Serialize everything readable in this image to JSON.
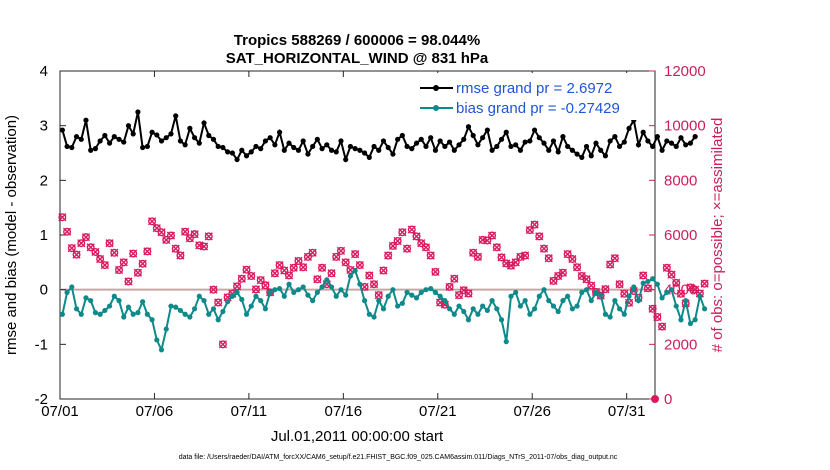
{
  "chart_data": {
    "type": "line",
    "title": "Tropics 588269 / 600006 = 98.044%",
    "subtitle": "SAT_HORIZONTAL_WIND @ 831 hPa",
    "xlabel": "Jul.01,2011 00:00:00 start",
    "ylabel": "rmse and bias (model - observation)",
    "y2label": "# of obs: o=possible; ×=assimilated",
    "footnote": "data file: /Users/raeder/DAI/ATM_forcXX/CAM6_setup/f.e21.FHIST_BGC.f09_025.CAM6assim.011/Diags_NTrS_2011-07/obs_diag_output.nc",
    "xlim": [
      0,
      31.5
    ],
    "ylim": [
      -2,
      4
    ],
    "y2lim": [
      0,
      12000
    ],
    "x_ticks": [
      0,
      5,
      10,
      15,
      20,
      25,
      30
    ],
    "x_tick_labels": [
      "07/01",
      "07/06",
      "07/11",
      "07/16",
      "07/21",
      "07/26",
      "07/31"
    ],
    "y_ticks": [
      -2,
      -1,
      0,
      1,
      2,
      3,
      4
    ],
    "y_tick_labels": [
      "-2",
      "-1",
      "0",
      "1",
      "2",
      "3",
      "4"
    ],
    "y2_ticks": [
      0,
      2000,
      4000,
      6000,
      8000,
      10000,
      12000
    ],
    "y2_tick_labels": [
      "0",
      "2000",
      "4000",
      "6000",
      "8000",
      "10000",
      "12000"
    ],
    "legend": [
      {
        "label": "rmse grand pr = 2.6972",
        "color": "#000000"
      },
      {
        "label": "bias grand pr = -0.27429",
        "color": "#0f8a8a"
      }
    ],
    "x_step_days": 0.25,
    "rmse": [
      2.92,
      2.62,
      2.6,
      2.8,
      2.75,
      3.1,
      2.55,
      2.58,
      2.72,
      2.82,
      2.68,
      2.8,
      2.75,
      2.7,
      3.0,
      2.85,
      3.25,
      2.6,
      2.62,
      2.88,
      2.83,
      2.72,
      2.78,
      2.85,
      3.18,
      2.72,
      2.65,
      2.95,
      2.78,
      2.68,
      3.05,
      2.82,
      2.75,
      2.62,
      2.6,
      2.52,
      2.5,
      2.38,
      2.55,
      2.45,
      2.52,
      2.62,
      2.58,
      2.72,
      2.78,
      2.65,
      2.88,
      2.55,
      2.68,
      2.6,
      2.55,
      2.72,
      2.48,
      2.62,
      2.75,
      2.58,
      2.65,
      2.55,
      2.52,
      2.72,
      2.38,
      2.62,
      2.58,
      2.55,
      2.5,
      2.42,
      2.62,
      2.55,
      2.72,
      2.6,
      2.48,
      2.75,
      2.82,
      2.62,
      2.58,
      2.68,
      2.75,
      2.62,
      2.78,
      2.55,
      2.72,
      2.62,
      2.7,
      2.55,
      2.65,
      2.75,
      2.98,
      2.82,
      2.65,
      2.78,
      2.92,
      2.55,
      2.62,
      2.75,
      2.88,
      2.62,
      2.65,
      2.55,
      2.7,
      2.72,
      2.92,
      2.78,
      2.68,
      2.55,
      2.72,
      2.52,
      2.8,
      2.62,
      2.55,
      2.48,
      2.42,
      2.62,
      2.45,
      2.68,
      2.55,
      2.45,
      2.72,
      2.8,
      2.62,
      2.7,
      2.95,
      3.1,
      2.65,
      2.88,
      2.72,
      2.62,
      2.8,
      2.55,
      2.72,
      2.68,
      2.62,
      2.78,
      2.65,
      2.68,
      2.8
    ],
    "bias": [
      -0.45,
      -0.05,
      0.05,
      -0.35,
      -0.45,
      -0.15,
      -0.2,
      -0.42,
      -0.45,
      -0.38,
      -0.3,
      -0.12,
      -0.2,
      -0.5,
      -0.32,
      -0.45,
      -0.42,
      -0.22,
      -0.45,
      -0.55,
      -0.92,
      -1.1,
      -0.72,
      -0.3,
      -0.32,
      -0.38,
      -0.45,
      -0.5,
      -0.35,
      -0.12,
      -0.2,
      -0.45,
      -0.35,
      -0.55,
      -0.4,
      -0.22,
      -0.12,
      -0.05,
      -0.18,
      -0.45,
      -0.3,
      -0.12,
      -0.2,
      -0.35,
      -0.05,
      0.0,
      0.02,
      -0.12,
      0.1,
      -0.05,
      0.0,
      0.05,
      -0.1,
      -0.2,
      -0.05,
      0.05,
      0.18,
      0.05,
      -0.12,
      0.0,
      -0.1,
      0.25,
      0.35,
      0.1,
      -0.2,
      -0.45,
      -0.5,
      -0.2,
      -0.35,
      -0.12,
      0.0,
      -0.3,
      -0.25,
      -0.05,
      -0.1,
      -0.15,
      -0.05,
      0.0,
      0.02,
      -0.05,
      -0.12,
      -0.2,
      -0.35,
      -0.45,
      -0.3,
      -0.4,
      -0.55,
      -0.35,
      -0.45,
      -0.3,
      -0.38,
      -0.2,
      -0.35,
      -0.55,
      -0.95,
      -0.12,
      -0.05,
      -0.3,
      -0.2,
      -0.45,
      -0.35,
      -0.12,
      0.0,
      -0.2,
      -0.3,
      -0.4,
      -0.2,
      -0.12,
      -0.35,
      -0.3,
      -0.05,
      0.0,
      -0.2,
      -0.05,
      -0.1,
      -0.45,
      -0.5,
      -0.2,
      -0.35,
      -0.45,
      -0.12,
      0.05,
      -0.2,
      0.12,
      0.15,
      0.2,
      0.1,
      -0.15,
      -0.05,
      0.0,
      -0.3,
      -0.55,
      -0.2,
      -0.62,
      -0.55,
      -0.12,
      -0.35
    ],
    "obs_count": [
      6650,
      6120,
      5520,
      5280,
      5700,
      5920,
      5550,
      5380,
      5120,
      4900,
      5700,
      5350,
      4720,
      5000,
      4300,
      5320,
      4620,
      4950,
      5400,
      6500,
      6250,
      6100,
      5820,
      5980,
      5500,
      5250,
      6120,
      5880,
      6030,
      5620,
      5580,
      5950,
      4000,
      3530,
      2000,
      3720,
      3850,
      4120,
      4400,
      4730,
      4500,
      4010,
      4350,
      4160,
      3900,
      4600,
      4900,
      4700,
      4520,
      4800,
      5050,
      4820,
      5200,
      5350,
      4380,
      4800,
      4200,
      4600,
      5200,
      5420,
      5000,
      4720,
      5300,
      4900,
      4100,
      4520,
      4200,
      3800,
      4700,
      5250,
      5600,
      5780,
      6100,
      5500,
      6200,
      5950,
      5700,
      5550,
      5250,
      4650,
      3530,
      3450,
      4100,
      4400,
      3800,
      3980,
      3860,
      5350,
      5200,
      5820,
      5800,
      5980,
      5550,
      5180,
      4960,
      4880,
      5000,
      5200,
      5250,
      6180,
      6380,
      5950,
      5500,
      5150,
      4320,
      4500,
      4620,
      5300,
      5120,
      4820,
      4500,
      4380,
      4150,
      3920,
      3780,
      4020,
      4920,
      5150,
      4200,
      3850,
      3520,
      3950,
      3700,
      4520,
      4050,
      3300,
      3000,
      2650,
      4800,
      4550,
      4250,
      3850,
      3500,
      4080,
      4000,
      3860,
      4220
    ],
    "last_obs_zero": 0
  }
}
